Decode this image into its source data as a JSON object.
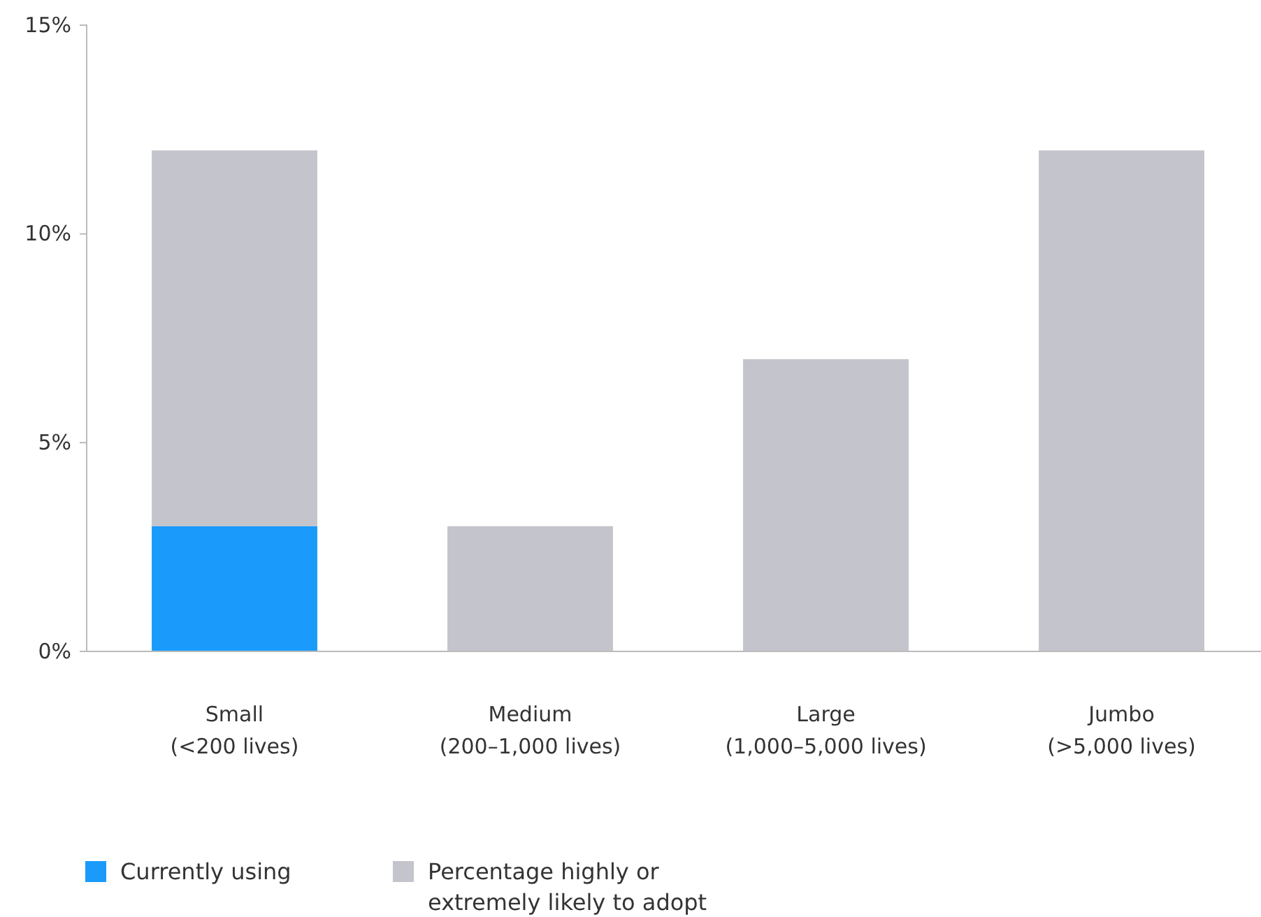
{
  "chart_data": {
    "type": "bar",
    "stacked": true,
    "categories": [
      "Small\n(<200 lives)",
      "Medium\n(200–1,000 lives)",
      "Large\n(1,000–5,000 lives)",
      "Jumbo\n(>5,000 lives)"
    ],
    "series": [
      {
        "name": "Currently using",
        "color": "#1a9bfc",
        "values": [
          3,
          0,
          0,
          0
        ]
      },
      {
        "name": "Percentage highly or extremely likely to adopt",
        "color": "#c4c4cc",
        "values": [
          9,
          3,
          7,
          12
        ]
      }
    ],
    "ylim": [
      0,
      15
    ],
    "yticks": [
      {
        "value": 0,
        "label": "0%"
      },
      {
        "value": 5,
        "label": "5%"
      },
      {
        "value": 10,
        "label": "10%"
      },
      {
        "value": 15,
        "label": "15%"
      }
    ],
    "grid": false,
    "legend": "bottom left"
  }
}
